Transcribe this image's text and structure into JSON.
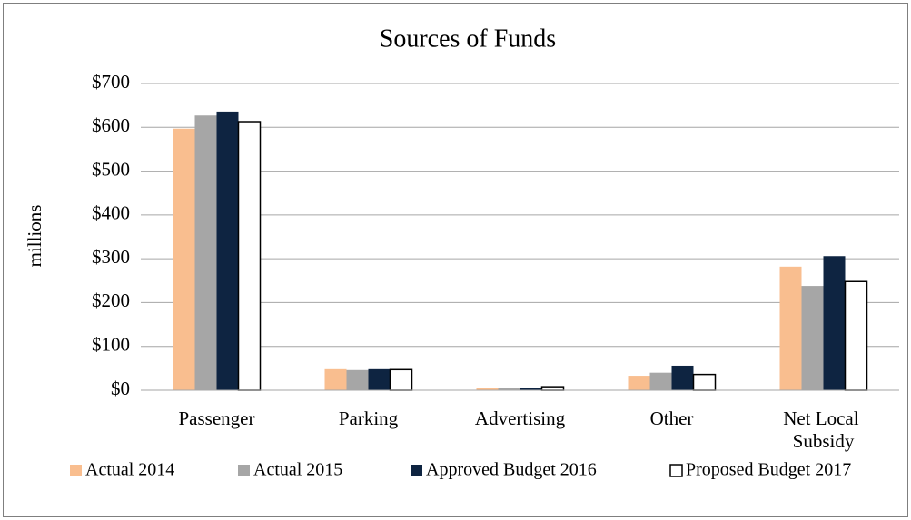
{
  "chart_data": {
    "type": "bar",
    "title": "Sources of Funds",
    "y_label": "millions",
    "categories": [
      "Passenger",
      "Parking",
      "Advertising",
      "Other",
      "Net Local Subsidy"
    ],
    "series": [
      {
        "name": "Actual 2014",
        "color": "#f9be8f",
        "values": [
          597,
          48,
          6,
          33,
          282
        ]
      },
      {
        "name": "Actual 2015",
        "color": "#a6a6a6",
        "values": [
          627,
          46,
          6,
          40,
          238
        ]
      },
      {
        "name": "Approved Budget 2016",
        "color": "#0e2441",
        "values": [
          636,
          48,
          6,
          56,
          306
        ]
      },
      {
        "name": "Proposed Budget 2017",
        "color": "#ffffff",
        "values": [
          613,
          47,
          8,
          36,
          248
        ]
      }
    ],
    "ylim": [
      0,
      700
    ],
    "yticks": [
      {
        "value": 0,
        "label": "$0"
      },
      {
        "value": 100,
        "label": "$100"
      },
      {
        "value": 200,
        "label": "$200"
      },
      {
        "value": 300,
        "label": "$300"
      },
      {
        "value": 400,
        "label": "$400"
      },
      {
        "value": 500,
        "label": "$500"
      },
      {
        "value": 600,
        "label": "$600"
      },
      {
        "value": 700,
        "label": "$700"
      }
    ],
    "grid": true,
    "legend": "bottom"
  }
}
